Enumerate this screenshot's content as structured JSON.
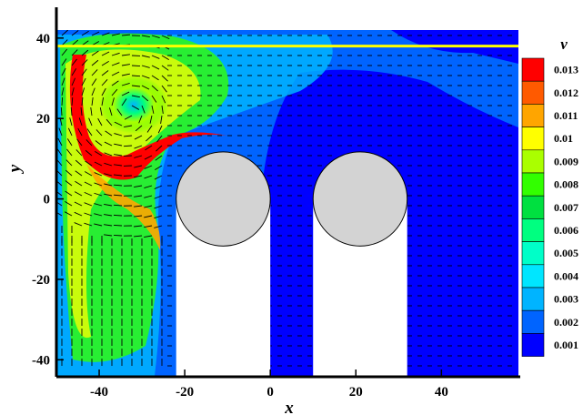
{
  "chart_data": {
    "type": "heatmap",
    "title": "",
    "xlabel": "x",
    "ylabel": "y",
    "xlim": [
      -50,
      58
    ],
    "ylim": [
      -44,
      42
    ],
    "x_ticks": [
      -40,
      -20,
      0,
      20,
      40
    ],
    "y_ticks": [
      -40,
      -20,
      0,
      20,
      40
    ],
    "x_tick_labels": [
      "-40",
      "-20",
      "0",
      "20",
      "40"
    ],
    "y_tick_labels": [
      "-40",
      "-20",
      "0",
      "20",
      "40"
    ],
    "legend": {
      "title": "v",
      "position": "right",
      "levels": [
        {
          "label": "0.013",
          "value": 0.013,
          "color": "#ff0000"
        },
        {
          "label": "0.012",
          "value": 0.012,
          "color": "#ff5a00"
        },
        {
          "label": "0.011",
          "value": 0.011,
          "color": "#ffa500"
        },
        {
          "label": "0.01",
          "value": 0.01,
          "color": "#ffff00"
        },
        {
          "label": "0.009",
          "value": 0.009,
          "color": "#aaff00"
        },
        {
          "label": "0.008",
          "value": 0.008,
          "color": "#32ff00"
        },
        {
          "label": "0.007",
          "value": 0.007,
          "color": "#00e040"
        },
        {
          "label": "0.006",
          "value": 0.006,
          "color": "#00ff80"
        },
        {
          "label": "0.005",
          "value": 0.005,
          "color": "#00ffc8"
        },
        {
          "label": "0.004",
          "value": 0.004,
          "color": "#00e6ff"
        },
        {
          "label": "0.003",
          "value": 0.003,
          "color": "#00b4ff"
        },
        {
          "label": "0.002",
          "value": 0.002,
          "color": "#0064ff"
        },
        {
          "label": "0.001",
          "value": 0.001,
          "color": "#0000ff"
        }
      ]
    },
    "free_surface_y": 38,
    "obstacles": [
      {
        "name": "cylinder-left",
        "cx": -11,
        "cy": 0,
        "r": 11,
        "wake_to_y": -44
      },
      {
        "name": "cylinder-right",
        "cx": 21,
        "cy": 0,
        "r": 11,
        "wake_to_y": -44
      }
    ],
    "obstacle_color": "#d3d3d3",
    "features": [
      {
        "name": "vortex-core",
        "x": -33,
        "y": 22,
        "value": 0.006
      },
      {
        "name": "shear-jet",
        "x": -35,
        "y": 5,
        "value": 0.013
      }
    ]
  }
}
